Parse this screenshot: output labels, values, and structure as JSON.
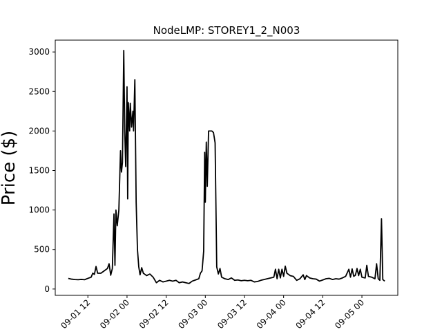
{
  "chart_data": {
    "type": "line",
    "title": "NodeLMP: STOREY1_2_N003",
    "xlabel": "",
    "ylabel": "Price ($)",
    "grid": false,
    "legend": "none",
    "line_color": "#000000",
    "x_ticks": [
      {
        "hours": 12,
        "label": "09-01 12"
      },
      {
        "hours": 24,
        "label": "09-02 00"
      },
      {
        "hours": 36,
        "label": "09-02 12"
      },
      {
        "hours": 48,
        "label": "09-03 00"
      },
      {
        "hours": 60,
        "label": "09-03 12"
      },
      {
        "hours": 72,
        "label": "09-04 00"
      },
      {
        "hours": 84,
        "label": "09-04 12"
      },
      {
        "hours": 96,
        "label": "09-05 00"
      }
    ],
    "y_ticks": [
      0,
      500,
      1000,
      1500,
      2000,
      2500,
      3000
    ],
    "xlim_hours": [
      2,
      107
    ],
    "ylim": [
      -80,
      3150
    ],
    "series": [
      {
        "values": [
          [
            6.0,
            135
          ],
          [
            7.0,
            125
          ],
          [
            8.0,
            120
          ],
          [
            9.0,
            118
          ],
          [
            10.0,
            122
          ],
          [
            11.0,
            118
          ],
          [
            12.0,
            135
          ],
          [
            13.0,
            150
          ],
          [
            13.5,
            200
          ],
          [
            14.0,
            185
          ],
          [
            14.5,
            285
          ],
          [
            15.0,
            200
          ],
          [
            16.0,
            200
          ],
          [
            17.0,
            230
          ],
          [
            18.0,
            260
          ],
          [
            18.5,
            320
          ],
          [
            19.0,
            175
          ],
          [
            19.5,
            260
          ],
          [
            20.0,
            950
          ],
          [
            20.3,
            300
          ],
          [
            20.6,
            1000
          ],
          [
            21.0,
            800
          ],
          [
            21.5,
            1000
          ],
          [
            22.0,
            1750
          ],
          [
            22.3,
            1480
          ],
          [
            22.6,
            1600
          ],
          [
            23.0,
            3020
          ],
          [
            23.3,
            2000
          ],
          [
            23.6,
            1550
          ],
          [
            24.0,
            2560
          ],
          [
            24.2,
            1140
          ],
          [
            24.4,
            2360
          ],
          [
            24.8,
            2000
          ],
          [
            25.0,
            2350
          ],
          [
            25.4,
            2050
          ],
          [
            25.8,
            2250
          ],
          [
            26.0,
            2000
          ],
          [
            26.4,
            2650
          ],
          [
            26.8,
            1100
          ],
          [
            27.2,
            500
          ],
          [
            27.6,
            280
          ],
          [
            28.0,
            180
          ],
          [
            28.5,
            270
          ],
          [
            29.0,
            200
          ],
          [
            30.0,
            170
          ],
          [
            31.0,
            190
          ],
          [
            32.0,
            150
          ],
          [
            33.0,
            80
          ],
          [
            34.0,
            110
          ],
          [
            35.0,
            90
          ],
          [
            36.0,
            100
          ],
          [
            37.0,
            110
          ],
          [
            38.0,
            100
          ],
          [
            39.0,
            110
          ],
          [
            40.0,
            80
          ],
          [
            41.0,
            90
          ],
          [
            42.0,
            80
          ],
          [
            43.0,
            70
          ],
          [
            44.0,
            100
          ],
          [
            45.0,
            115
          ],
          [
            46.0,
            130
          ],
          [
            46.5,
            200
          ],
          [
            47.0,
            230
          ],
          [
            47.5,
            480
          ],
          [
            47.8,
            1730
          ],
          [
            48.0,
            1100
          ],
          [
            48.3,
            1860
          ],
          [
            48.6,
            1300
          ],
          [
            49.0,
            2000
          ],
          [
            50.0,
            2000
          ],
          [
            50.5,
            1980
          ],
          [
            51.0,
            1850
          ],
          [
            51.5,
            280
          ],
          [
            52.0,
            190
          ],
          [
            52.5,
            260
          ],
          [
            53.0,
            150
          ],
          [
            54.0,
            130
          ],
          [
            55.0,
            120
          ],
          [
            56.0,
            140
          ],
          [
            57.0,
            110
          ],
          [
            58.0,
            115
          ],
          [
            59.0,
            105
          ],
          [
            60.0,
            110
          ],
          [
            61.0,
            105
          ],
          [
            62.0,
            110
          ],
          [
            63.0,
            90
          ],
          [
            64.0,
            95
          ],
          [
            65.0,
            110
          ],
          [
            66.0,
            120
          ],
          [
            67.0,
            130
          ],
          [
            68.0,
            140
          ],
          [
            69.0,
            150
          ],
          [
            69.5,
            250
          ],
          [
            70.0,
            130
          ],
          [
            70.5,
            250
          ],
          [
            71.0,
            140
          ],
          [
            71.5,
            250
          ],
          [
            72.0,
            160
          ],
          [
            72.5,
            290
          ],
          [
            73.0,
            200
          ],
          [
            74.0,
            170
          ],
          [
            75.0,
            160
          ],
          [
            76.0,
            110
          ],
          [
            77.0,
            130
          ],
          [
            78.0,
            180
          ],
          [
            78.5,
            120
          ],
          [
            79.0,
            170
          ],
          [
            80.0,
            140
          ],
          [
            81.0,
            130
          ],
          [
            82.0,
            125
          ],
          [
            83.0,
            100
          ],
          [
            84.0,
            115
          ],
          [
            85.0,
            130
          ],
          [
            86.0,
            135
          ],
          [
            87.0,
            120
          ],
          [
            88.0,
            130
          ],
          [
            89.0,
            125
          ],
          [
            90.0,
            140
          ],
          [
            91.0,
            160
          ],
          [
            92.0,
            250
          ],
          [
            92.5,
            150
          ],
          [
            93.0,
            255
          ],
          [
            93.5,
            160
          ],
          [
            94.0,
            175
          ],
          [
            94.5,
            260
          ],
          [
            95.0,
            170
          ],
          [
            95.5,
            250
          ],
          [
            96.0,
            150
          ],
          [
            97.0,
            140
          ],
          [
            97.5,
            300
          ],
          [
            98.0,
            160
          ],
          [
            99.0,
            150
          ],
          [
            100.0,
            130
          ],
          [
            100.5,
            320
          ],
          [
            101.0,
            130
          ],
          [
            101.5,
            110
          ],
          [
            102.0,
            890
          ],
          [
            102.4,
            120
          ],
          [
            103.0,
            100
          ]
        ]
      }
    ]
  }
}
